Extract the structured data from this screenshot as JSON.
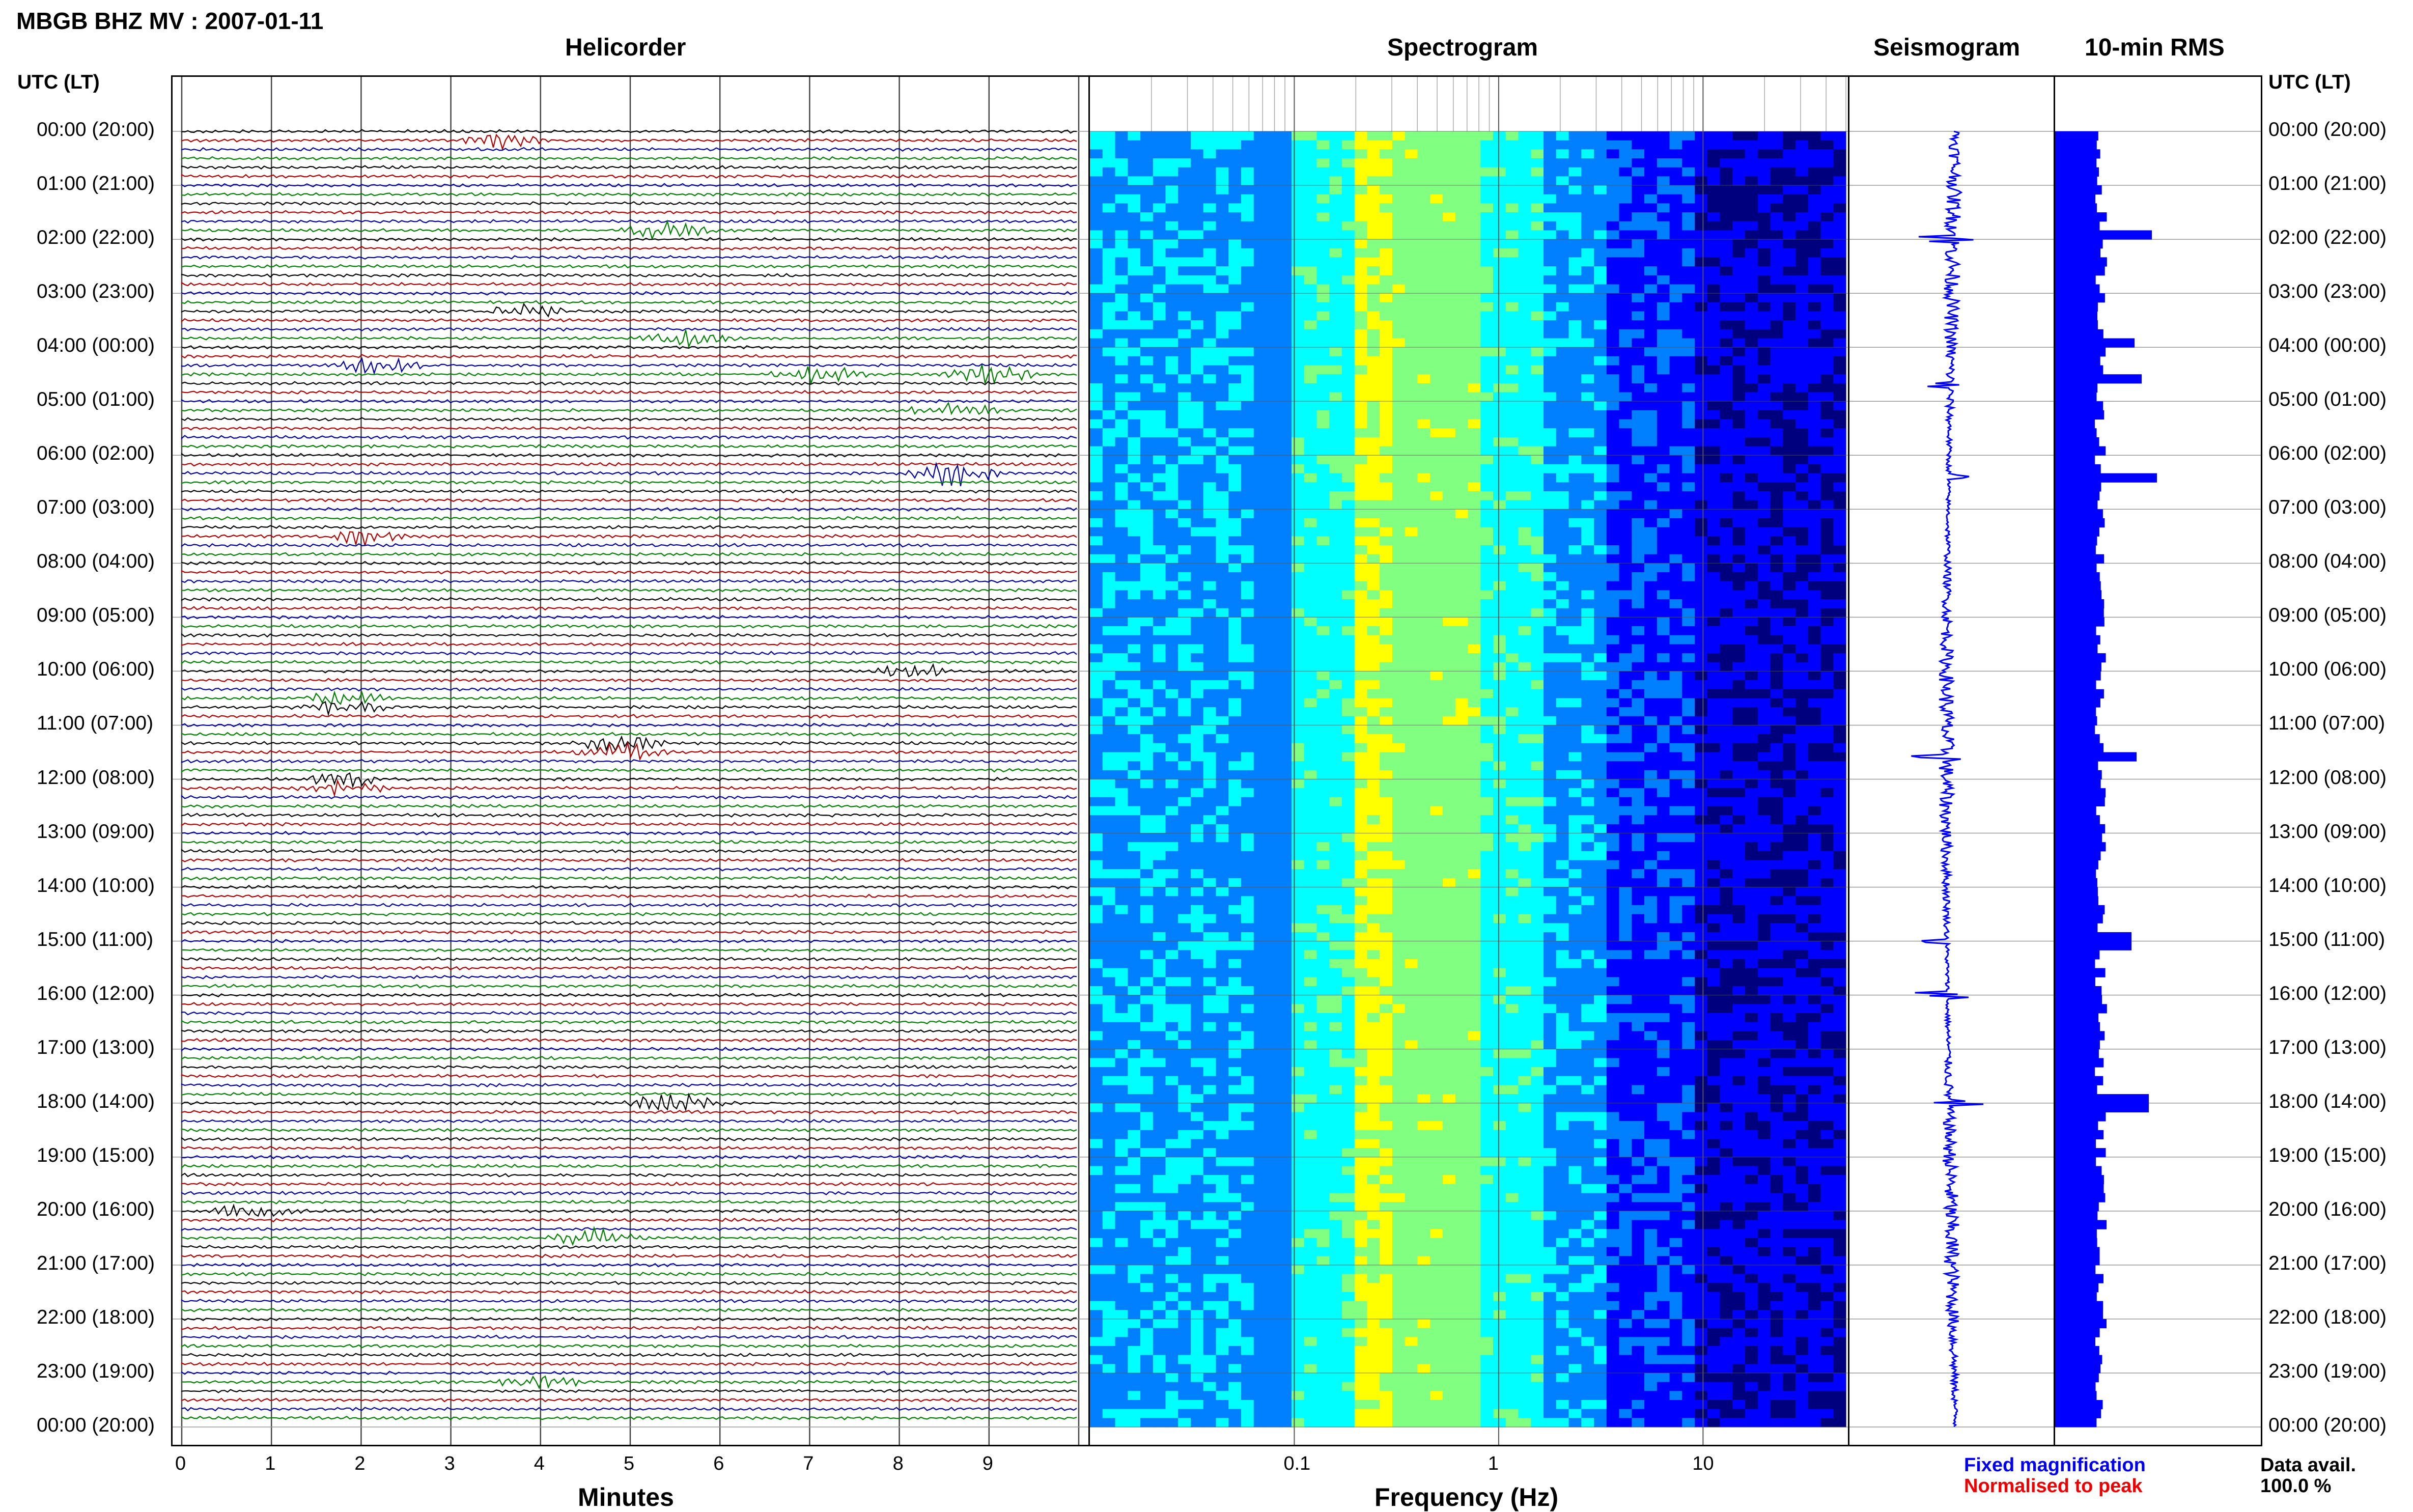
{
  "header": {
    "station_title": "MBGB BHZ MV : 2007-01-11"
  },
  "panels": {
    "helicorder_title": "Helicorder",
    "spectrogram_title": "Spectrogram",
    "seismogram_title": "Seismogram",
    "rms_title": "10-min RMS"
  },
  "time_axis": {
    "left_header": "UTC (LT)",
    "right_header": "UTC (LT)",
    "labels": [
      "00:00 (20:00)",
      "01:00 (21:00)",
      "02:00 (22:00)",
      "03:00 (23:00)",
      "04:00 (00:00)",
      "05:00 (01:00)",
      "06:00 (02:00)",
      "07:00 (03:00)",
      "08:00 (04:00)",
      "09:00 (05:00)",
      "10:00 (06:00)",
      "11:00 (07:00)",
      "12:00 (08:00)",
      "13:00 (09:00)",
      "14:00 (10:00)",
      "15:00 (11:00)",
      "16:00 (12:00)",
      "17:00 (13:00)",
      "18:00 (14:00)",
      "19:00 (15:00)",
      "20:00 (16:00)",
      "21:00 (17:00)",
      "22:00 (18:00)",
      "23:00 (19:00)",
      "00:00 (20:00)"
    ]
  },
  "helicorder_axis": {
    "xlabel": "Minutes",
    "ticks": [
      "0",
      "1",
      "2",
      "3",
      "4",
      "5",
      "6",
      "7",
      "8",
      "9"
    ],
    "trace_colors": [
      "#000000",
      "#b00000",
      "#0000a0",
      "#008000"
    ]
  },
  "spectrogram_axis": {
    "xlabel": "Frequency (Hz)",
    "ticks": [
      "0.1",
      "1",
      "10"
    ]
  },
  "legend": {
    "fixed": "Fixed magnification",
    "normalised": "Normalised to peak"
  },
  "data_avail": {
    "label": "Data avail.",
    "value": "100.0 %"
  },
  "chart_data": [
    {
      "type": "line",
      "title": "Helicorder",
      "xlabel": "Minutes",
      "xlim": [
        0,
        10
      ],
      "rows": 144,
      "row_minutes": 10,
      "events": [
        {
          "hour": 0.1,
          "minute": 3.6,
          "amp": 1.0
        },
        {
          "hour": 1.9,
          "minute": 5.4,
          "amp": 1.6
        },
        {
          "hour": 3.3,
          "minute": 3.8,
          "amp": 1.0
        },
        {
          "hour": 3.8,
          "minute": 5.6,
          "amp": 1.4
        },
        {
          "hour": 4.3,
          "minute": 2.2,
          "amp": 1.2
        },
        {
          "hour": 4.5,
          "minute": 7.1,
          "amp": 1.4
        },
        {
          "hour": 4.5,
          "minute": 9.0,
          "amp": 1.4
        },
        {
          "hour": 5.2,
          "minute": 8.6,
          "amp": 1.2
        },
        {
          "hour": 6.3,
          "minute": 8.6,
          "amp": 2.0
        },
        {
          "hour": 7.5,
          "minute": 2.0,
          "amp": 1.1
        },
        {
          "hour": 10.0,
          "minute": 8.1,
          "amp": 1.2
        },
        {
          "hour": 10.6,
          "minute": 1.8,
          "amp": 1.0
        },
        {
          "hour": 11.4,
          "minute": 4.9,
          "amp": 1.4
        },
        {
          "hour": 12.1,
          "minute": 1.8,
          "amp": 1.0
        },
        {
          "hour": 18.0,
          "minute": 5.5,
          "amp": 1.6
        },
        {
          "hour": 20.0,
          "minute": 0.8,
          "amp": 1.0
        },
        {
          "hour": 20.5,
          "minute": 4.6,
          "amp": 1.3
        },
        {
          "hour": 23.2,
          "minute": 4.0,
          "amp": 1.0
        }
      ]
    },
    {
      "type": "heatmap",
      "title": "Spectrogram",
      "xlabel": "Frequency (Hz)",
      "xscale": "log",
      "xlim": [
        0.01,
        50
      ],
      "colormap": [
        "#00007f",
        "#0000ff",
        "#0080ff",
        "#00ffff",
        "#80ff80",
        "#ffff00"
      ]
    },
    {
      "type": "line",
      "title": "Seismogram",
      "ylim_hours": [
        0,
        24
      ],
      "notable_spikes_hours": [
        2.0,
        4.7,
        6.4,
        11.6,
        15.0,
        16.0,
        18.0
      ]
    },
    {
      "type": "bar",
      "title": "10-min RMS",
      "orientation": "horizontal",
      "bins": 144,
      "baseline_level": 0.45,
      "peaks": [
        {
          "hour": 1.95,
          "level": 0.95
        },
        {
          "hour": 3.9,
          "level": 0.78
        },
        {
          "hour": 4.6,
          "level": 0.85
        },
        {
          "hour": 6.35,
          "level": 1.0
        },
        {
          "hour": 11.6,
          "level": 0.8
        },
        {
          "hour": 15.0,
          "level": 0.75
        },
        {
          "hour": 18.0,
          "level": 0.92
        }
      ]
    }
  ]
}
